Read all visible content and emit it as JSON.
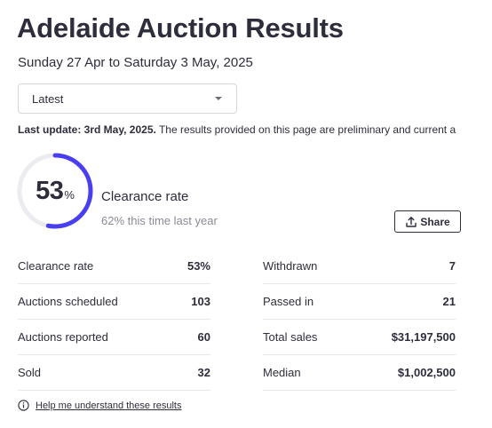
{
  "page": {
    "title": "Adelaide Auction Results",
    "date_range": "Sunday 27 Apr to Saturday 3 May, 2025"
  },
  "filter": {
    "selected": "Latest"
  },
  "update": {
    "label": "Last update: 3rd May, 2025.",
    "text": " The results provided on this page are preliminary and current a"
  },
  "clearance": {
    "value": "53",
    "percent_symbol": "%",
    "ring_fraction": 0.53,
    "label": "Clearance rate",
    "last_year": "62% this time last year",
    "ring_color": "#4a3ff0"
  },
  "share": {
    "label": "Share"
  },
  "stats_left": [
    {
      "label": "Clearance rate",
      "value": "53%"
    },
    {
      "label": "Auctions scheduled",
      "value": "103"
    },
    {
      "label": "Auctions reported",
      "value": "60"
    },
    {
      "label": "Sold",
      "value": "32"
    }
  ],
  "stats_right": [
    {
      "label": "Withdrawn",
      "value": "7"
    },
    {
      "label": "Passed in",
      "value": "21"
    },
    {
      "label": "Total sales",
      "value": "$31,197,500"
    },
    {
      "label": "Median",
      "value": "$1,002,500"
    }
  ],
  "help": {
    "label": "Help me understand these results"
  }
}
